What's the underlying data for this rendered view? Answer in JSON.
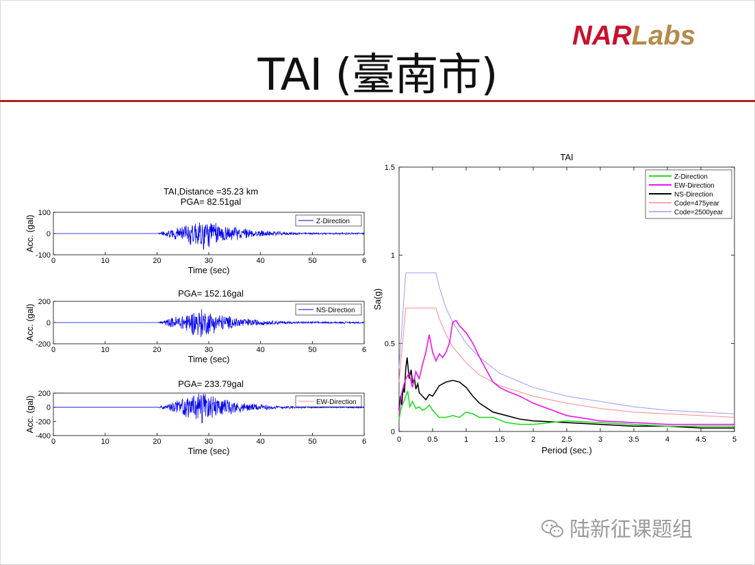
{
  "slide": {
    "title": "TAI (臺南市)",
    "logo_primary": "NAR",
    "logo_secondary": "Labs",
    "watermark": "陆新征课题组",
    "accent_color": "#b02020"
  },
  "chart_data": [
    {
      "type": "line",
      "title": "TAI,Distance =35.23 km",
      "subtitle": "PGA= 82.51gal",
      "xlabel": "Time (sec)",
      "ylabel": "Acc. (gal)",
      "xlim": [
        0,
        60
      ],
      "ylim": [
        -100,
        100
      ],
      "xticks": [
        "0",
        "10",
        "20",
        "30",
        "40",
        "50",
        "6"
      ],
      "yticks": [
        "100",
        "0",
        "-100"
      ],
      "series": [
        {
          "name": "Z-Direction",
          "color": "#0000ee",
          "peak_time": 29,
          "pga": 82.51
        }
      ],
      "legend": "top-right"
    },
    {
      "type": "line",
      "title": "PGA= 152.16gal",
      "xlabel": "Time (sec)",
      "ylabel": "Acc. (gal)",
      "xlim": [
        0,
        60
      ],
      "ylim": [
        -200,
        200
      ],
      "xticks": [
        "0",
        "10",
        "20",
        "30",
        "40",
        "50",
        "6"
      ],
      "yticks": [
        "200",
        "0",
        "-200"
      ],
      "series": [
        {
          "name": "NS-Direction",
          "color": "#0000ee",
          "peak_time": 28.5,
          "pga": 152.16
        }
      ],
      "legend": "top-right"
    },
    {
      "type": "line",
      "title": "PGA= 233.79gal",
      "xlabel": "Time (sec)",
      "ylabel": "Acc. (gal)",
      "xlim": [
        0,
        60
      ],
      "ylim": [
        -400,
        200
      ],
      "xticks": [
        "0",
        "10",
        "20",
        "30",
        "40",
        "50",
        "6"
      ],
      "yticks": [
        "200",
        "0",
        "-200",
        "-400"
      ],
      "series": [
        {
          "name": "EW-Direction",
          "color": "#0000ee",
          "peak_time": 28.7,
          "pga": 233.79
        }
      ],
      "legend": "top-right"
    },
    {
      "type": "line",
      "title": "TAI",
      "xlabel": "Period (sec.)",
      "ylabel": "Sa(g)",
      "xlim": [
        0,
        5
      ],
      "ylim": [
        0,
        1.5
      ],
      "xticks": [
        "0",
        "0.5",
        "1",
        "1.5",
        "2",
        "2.5",
        "3",
        "3.5",
        "4",
        "4.5",
        "5"
      ],
      "yticks": [
        "1.5",
        "1",
        "0.5",
        "0"
      ],
      "legend": "top-right",
      "series": [
        {
          "name": "Z-Direction",
          "color": "#22dd22",
          "width": 1.6,
          "x": [
            0,
            0.03,
            0.06,
            0.1,
            0.13,
            0.16,
            0.2,
            0.25,
            0.3,
            0.35,
            0.4,
            0.45,
            0.5,
            0.55,
            0.6,
            0.7,
            0.8,
            0.9,
            1.0,
            1.1,
            1.2,
            1.4,
            1.6,
            1.8,
            2.0,
            2.5,
            3.0,
            3.5,
            4.0,
            4.5,
            5.0
          ],
          "y": [
            0.07,
            0.13,
            0.16,
            0.2,
            0.23,
            0.14,
            0.17,
            0.13,
            0.14,
            0.12,
            0.13,
            0.15,
            0.12,
            0.1,
            0.08,
            0.08,
            0.09,
            0.08,
            0.11,
            0.1,
            0.08,
            0.08,
            0.05,
            0.04,
            0.04,
            0.06,
            0.05,
            0.04,
            0.03,
            0.03,
            0.03
          ]
        },
        {
          "name": "EW-Direction",
          "color": "#ee11ee",
          "width": 1.6,
          "x": [
            0,
            0.03,
            0.06,
            0.1,
            0.15,
            0.2,
            0.25,
            0.3,
            0.35,
            0.4,
            0.45,
            0.5,
            0.55,
            0.6,
            0.65,
            0.7,
            0.75,
            0.8,
            0.85,
            0.9,
            1.0,
            1.1,
            1.2,
            1.3,
            1.4,
            1.5,
            1.6,
            1.8,
            2.0,
            2.5,
            3.0,
            3.5,
            4.0,
            4.5,
            5.0
          ],
          "y": [
            0.1,
            0.2,
            0.25,
            0.3,
            0.33,
            0.25,
            0.34,
            0.3,
            0.38,
            0.45,
            0.55,
            0.45,
            0.4,
            0.44,
            0.42,
            0.45,
            0.5,
            0.62,
            0.63,
            0.6,
            0.56,
            0.5,
            0.42,
            0.35,
            0.28,
            0.25,
            0.23,
            0.2,
            0.16,
            0.09,
            0.06,
            0.05,
            0.04,
            0.04,
            0.04
          ]
        },
        {
          "name": "NS-Direction",
          "color": "#000000",
          "width": 1.6,
          "x": [
            0,
            0.02,
            0.04,
            0.06,
            0.08,
            0.1,
            0.12,
            0.15,
            0.18,
            0.2,
            0.23,
            0.25,
            0.28,
            0.3,
            0.35,
            0.4,
            0.45,
            0.5,
            0.55,
            0.6,
            0.7,
            0.8,
            0.9,
            1.0,
            1.1,
            1.2,
            1.4,
            1.6,
            1.8,
            2.0,
            2.5,
            3.0,
            3.5,
            4.0,
            4.5,
            5.0
          ],
          "y": [
            0.12,
            0.2,
            0.15,
            0.25,
            0.22,
            0.36,
            0.42,
            0.3,
            0.35,
            0.28,
            0.3,
            0.24,
            0.27,
            0.22,
            0.2,
            0.18,
            0.21,
            0.2,
            0.23,
            0.26,
            0.28,
            0.29,
            0.28,
            0.25,
            0.2,
            0.16,
            0.11,
            0.09,
            0.07,
            0.06,
            0.05,
            0.04,
            0.03,
            0.03,
            0.02,
            0.02
          ]
        },
        {
          "name": "Code=475year",
          "color": "#ff8888",
          "width": 1,
          "x": [
            0,
            0.1,
            0.55,
            0.6,
            0.7,
            0.8,
            1.0,
            1.2,
            1.5,
            2.0,
            2.5,
            3.0,
            3.5,
            4.0,
            4.5,
            5.0
          ],
          "y": [
            0.28,
            0.7,
            0.7,
            0.64,
            0.55,
            0.48,
            0.39,
            0.32,
            0.26,
            0.2,
            0.16,
            0.13,
            0.11,
            0.1,
            0.09,
            0.08
          ]
        },
        {
          "name": "Code=2500year",
          "color": "#9999ff",
          "width": 1,
          "x": [
            0,
            0.1,
            0.55,
            0.6,
            0.7,
            0.8,
            1.0,
            1.2,
            1.5,
            2.0,
            2.5,
            3.0,
            3.5,
            4.0,
            4.5,
            5.0
          ],
          "y": [
            0.36,
            0.9,
            0.9,
            0.82,
            0.7,
            0.62,
            0.5,
            0.42,
            0.33,
            0.25,
            0.2,
            0.17,
            0.14,
            0.12,
            0.11,
            0.1
          ]
        }
      ]
    }
  ]
}
